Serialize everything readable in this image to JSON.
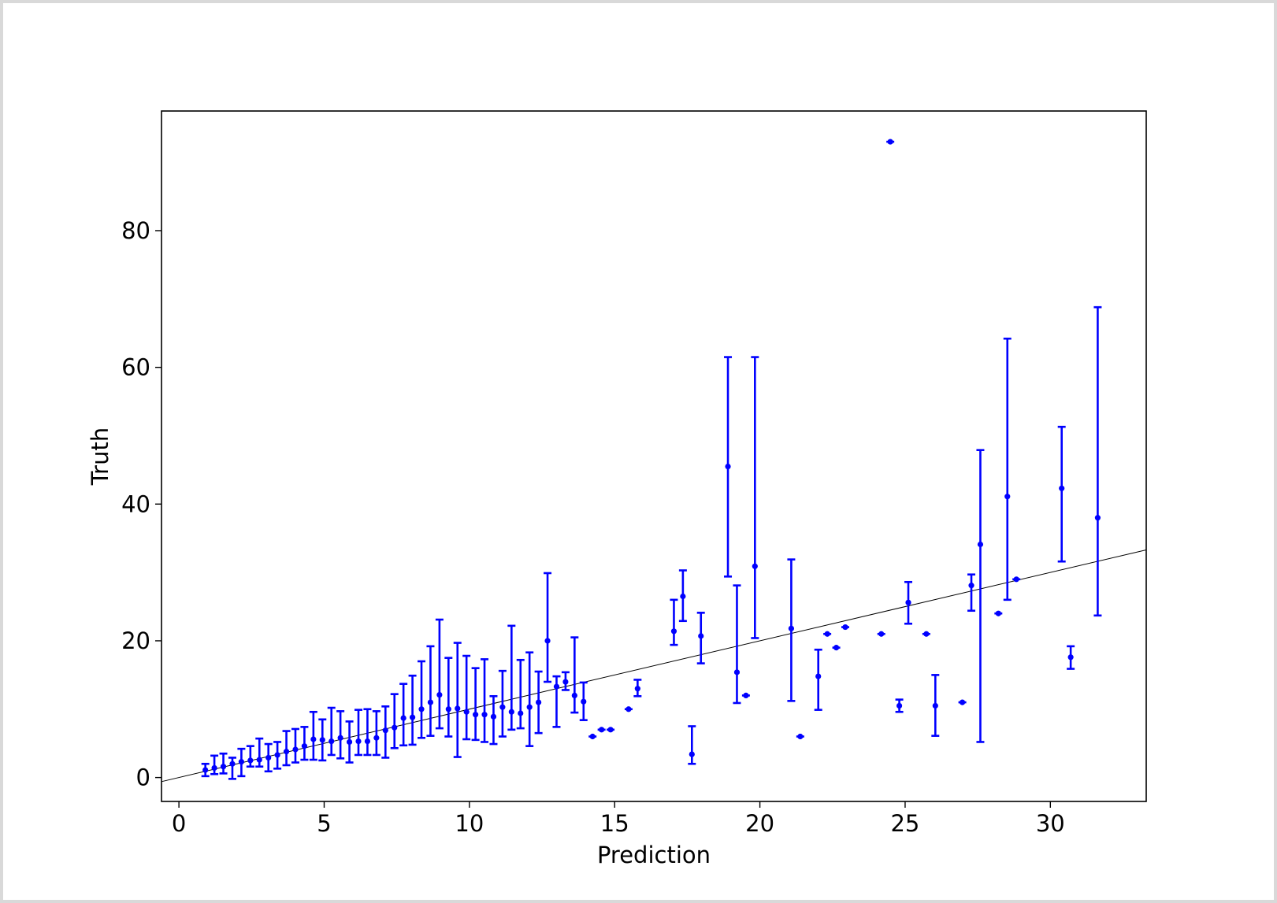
{
  "chart_data": {
    "type": "scatter",
    "title": "",
    "xlabel": "Prediction",
    "ylabel": "Truth",
    "xlim": [
      -0.6,
      33.3
    ],
    "ylim": [
      -3.5,
      97.5
    ],
    "xticks": [
      0,
      5,
      10,
      15,
      20,
      25,
      30
    ],
    "yticks": [
      0,
      20,
      40,
      60,
      80
    ],
    "grid": false,
    "legend": "none",
    "colors": {
      "points": "#0000ff",
      "reference_line": "#000000",
      "axes": "#000000"
    },
    "reference_line": {
      "from": [
        -0.6,
        -0.6
      ],
      "to": [
        33.3,
        33.3
      ]
    },
    "points": [
      {
        "x": 0.91,
        "y": 1.1,
        "ylow": 0.2,
        "yhigh": 2.0
      },
      {
        "x": 1.22,
        "y": 1.4,
        "ylow": 0.5,
        "yhigh": 3.2
      },
      {
        "x": 1.53,
        "y": 1.6,
        "ylow": 0.6,
        "yhigh": 3.5
      },
      {
        "x": 1.84,
        "y": 2.0,
        "ylow": -0.2,
        "yhigh": 2.9
      },
      {
        "x": 2.15,
        "y": 2.3,
        "ylow": 0.2,
        "yhigh": 4.2
      },
      {
        "x": 2.46,
        "y": 2.5,
        "ylow": 1.6,
        "yhigh": 4.6
      },
      {
        "x": 2.77,
        "y": 2.6,
        "ylow": 1.6,
        "yhigh": 5.7
      },
      {
        "x": 3.08,
        "y": 2.9,
        "ylow": 0.9,
        "yhigh": 4.9
      },
      {
        "x": 3.39,
        "y": 3.3,
        "ylow": 1.3,
        "yhigh": 5.2
      },
      {
        "x": 3.7,
        "y": 3.8,
        "ylow": 1.8,
        "yhigh": 6.8
      },
      {
        "x": 4.01,
        "y": 4.1,
        "ylow": 2.2,
        "yhigh": 7.1
      },
      {
        "x": 4.32,
        "y": 4.6,
        "ylow": 2.6,
        "yhigh": 7.4
      },
      {
        "x": 4.63,
        "y": 5.6,
        "ylow": 2.6,
        "yhigh": 9.6
      },
      {
        "x": 4.94,
        "y": 5.5,
        "ylow": 2.5,
        "yhigh": 8.5
      },
      {
        "x": 5.25,
        "y": 5.3,
        "ylow": 3.3,
        "yhigh": 10.2
      },
      {
        "x": 5.56,
        "y": 5.8,
        "ylow": 2.8,
        "yhigh": 9.7
      },
      {
        "x": 5.87,
        "y": 5.2,
        "ylow": 2.2,
        "yhigh": 8.2
      },
      {
        "x": 6.18,
        "y": 5.3,
        "ylow": 3.3,
        "yhigh": 9.9
      },
      {
        "x": 6.49,
        "y": 5.3,
        "ylow": 3.3,
        "yhigh": 10.0
      },
      {
        "x": 6.8,
        "y": 5.8,
        "ylow": 3.3,
        "yhigh": 9.7
      },
      {
        "x": 7.11,
        "y": 6.9,
        "ylow": 2.9,
        "yhigh": 10.4
      },
      {
        "x": 7.42,
        "y": 7.3,
        "ylow": 4.3,
        "yhigh": 12.2
      },
      {
        "x": 7.73,
        "y": 8.7,
        "ylow": 4.7,
        "yhigh": 13.7
      },
      {
        "x": 8.04,
        "y": 8.8,
        "ylow": 4.8,
        "yhigh": 14.9
      },
      {
        "x": 8.35,
        "y": 10.0,
        "ylow": 5.8,
        "yhigh": 17.0
      },
      {
        "x": 8.66,
        "y": 11.0,
        "ylow": 6.1,
        "yhigh": 19.2
      },
      {
        "x": 8.97,
        "y": 12.1,
        "ylow": 7.2,
        "yhigh": 23.1
      },
      {
        "x": 9.28,
        "y": 10.0,
        "ylow": 6.0,
        "yhigh": 17.5
      },
      {
        "x": 9.59,
        "y": 10.1,
        "ylow": 3.0,
        "yhigh": 19.7
      },
      {
        "x": 9.9,
        "y": 9.6,
        "ylow": 5.6,
        "yhigh": 17.8
      },
      {
        "x": 10.21,
        "y": 9.2,
        "ylow": 5.5,
        "yhigh": 16.0
      },
      {
        "x": 10.52,
        "y": 9.2,
        "ylow": 5.2,
        "yhigh": 17.3
      },
      {
        "x": 10.83,
        "y": 8.9,
        "ylow": 4.9,
        "yhigh": 11.9
      },
      {
        "x": 11.14,
        "y": 10.3,
        "ylow": 6.0,
        "yhigh": 15.6
      },
      {
        "x": 11.45,
        "y": 9.6,
        "ylow": 7.0,
        "yhigh": 22.2
      },
      {
        "x": 11.76,
        "y": 9.4,
        "ylow": 7.2,
        "yhigh": 17.2
      },
      {
        "x": 12.07,
        "y": 10.3,
        "ylow": 4.6,
        "yhigh": 18.3
      },
      {
        "x": 12.38,
        "y": 11.0,
        "ylow": 6.5,
        "yhigh": 15.5
      },
      {
        "x": 12.69,
        "y": 20.0,
        "ylow": 14.0,
        "yhigh": 29.9
      },
      {
        "x": 13.0,
        "y": 13.3,
        "ylow": 7.4,
        "yhigh": 14.8
      },
      {
        "x": 13.31,
        "y": 14.0,
        "ylow": 12.8,
        "yhigh": 15.4
      },
      {
        "x": 13.62,
        "y": 12.0,
        "ylow": 9.5,
        "yhigh": 20.5
      },
      {
        "x": 13.93,
        "y": 11.1,
        "ylow": 8.4,
        "yhigh": 13.9
      },
      {
        "x": 14.24,
        "y": 6.0
      },
      {
        "x": 14.55,
        "y": 7.0
      },
      {
        "x": 14.86,
        "y": 7.0
      },
      {
        "x": 15.48,
        "y": 10.0
      },
      {
        "x": 15.79,
        "y": 13.0,
        "ylow": 11.9,
        "yhigh": 14.3
      },
      {
        "x": 17.04,
        "y": 21.4,
        "ylow": 19.4,
        "yhigh": 26.0
      },
      {
        "x": 17.35,
        "y": 26.5,
        "ylow": 22.9,
        "yhigh": 30.3
      },
      {
        "x": 17.66,
        "y": 3.4,
        "ylow": 2.0,
        "yhigh": 7.5
      },
      {
        "x": 17.97,
        "y": 20.7,
        "ylow": 16.7,
        "yhigh": 24.1
      },
      {
        "x": 18.9,
        "y": 45.5,
        "ylow": 29.4,
        "yhigh": 61.5
      },
      {
        "x": 19.21,
        "y": 15.4,
        "ylow": 10.9,
        "yhigh": 28.1
      },
      {
        "x": 19.52,
        "y": 12.0
      },
      {
        "x": 19.83,
        "y": 30.9,
        "ylow": 20.4,
        "yhigh": 61.5
      },
      {
        "x": 21.08,
        "y": 21.8,
        "ylow": 11.2,
        "yhigh": 31.9
      },
      {
        "x": 21.39,
        "y": 6.0
      },
      {
        "x": 22.01,
        "y": 14.8,
        "ylow": 9.9,
        "yhigh": 18.7
      },
      {
        "x": 22.32,
        "y": 21.0
      },
      {
        "x": 22.63,
        "y": 19.0
      },
      {
        "x": 22.94,
        "y": 22.0
      },
      {
        "x": 24.18,
        "y": 21.0
      },
      {
        "x": 24.49,
        "y": 93.0
      },
      {
        "x": 24.8,
        "y": 10.5,
        "ylow": 9.6,
        "yhigh": 11.4
      },
      {
        "x": 25.11,
        "y": 25.6,
        "ylow": 22.5,
        "yhigh": 28.6
      },
      {
        "x": 25.73,
        "y": 21.0
      },
      {
        "x": 26.04,
        "y": 10.5,
        "ylow": 6.1,
        "yhigh": 15.0
      },
      {
        "x": 26.97,
        "y": 11.0
      },
      {
        "x": 27.28,
        "y": 28.1,
        "ylow": 24.4,
        "yhigh": 29.7
      },
      {
        "x": 27.59,
        "y": 34.1,
        "ylow": 5.2,
        "yhigh": 47.9
      },
      {
        "x": 28.21,
        "y": 24.0
      },
      {
        "x": 28.52,
        "y": 41.1,
        "ylow": 26.0,
        "yhigh": 64.2
      },
      {
        "x": 28.83,
        "y": 29.0
      },
      {
        "x": 30.39,
        "y": 42.3,
        "ylow": 31.6,
        "yhigh": 51.3
      },
      {
        "x": 30.7,
        "y": 17.6,
        "ylow": 15.9,
        "yhigh": 19.2
      },
      {
        "x": 31.63,
        "y": 38.0,
        "ylow": 23.7,
        "yhigh": 68.8
      }
    ]
  }
}
